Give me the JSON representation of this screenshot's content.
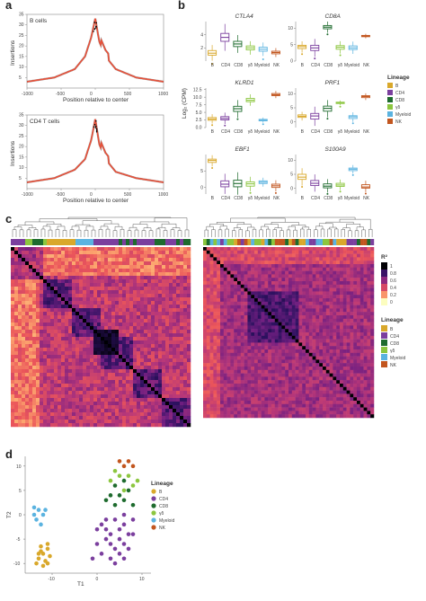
{
  "figure": {
    "panel_a": "a",
    "panel_b": "b",
    "panel_c": "c",
    "panel_d": "d"
  },
  "colors": {
    "B": "#d9a82b",
    "CD4": "#7b3f9e",
    "CD8": "#1e6b2e",
    "gd": "#8cc63f",
    "Myeloid": "#5bb3e0",
    "NK": "#c2561f",
    "profile_line": "#e8513a"
  },
  "panel_a": {
    "plots": [
      {
        "title": "B cells",
        "ylabel": "Insertions",
        "xlabel": "Position relative to center",
        "xticks": [
          "-1000",
          "-500",
          "0",
          "500",
          "1000"
        ],
        "yticks": [
          "5",
          "10",
          "15",
          "20",
          "25",
          "30",
          "35"
        ]
      },
      {
        "title": "CD4 T cells",
        "ylabel": "Insertions",
        "xlabel": "Position relative to center",
        "xticks": [
          "-1000",
          "-500",
          "0",
          "500",
          "1000"
        ],
        "yticks": [
          "5",
          "10",
          "15",
          "20",
          "25",
          "30",
          "35"
        ]
      }
    ]
  },
  "panel_b": {
    "ylabel": "Log₂ (CPM)",
    "categories": [
      "B",
      "CD4",
      "CD8",
      "γδ",
      "Myeloid",
      "NK"
    ],
    "genes": [
      {
        "name": "CTLA4",
        "yticks": [
          "2",
          "4"
        ],
        "ylim": [
          0,
          6
        ],
        "medians": [
          1.2,
          3.6,
          2.6,
          2.0,
          1.8,
          1.3
        ],
        "q1": [
          0.9,
          3.0,
          2.2,
          1.7,
          1.5,
          1.1
        ],
        "q3": [
          1.6,
          4.2,
          3.0,
          2.3,
          2.1,
          1.5
        ]
      },
      {
        "name": "CD8A",
        "yticks": [
          "0",
          "5",
          "10"
        ],
        "ylim": [
          0,
          12
        ],
        "medians": [
          4.4,
          4.0,
          10.3,
          4.2,
          4.0,
          7.6
        ],
        "q1": [
          3.8,
          3.2,
          9.8,
          3.6,
          3.5,
          7.4
        ],
        "q3": [
          4.8,
          4.8,
          10.8,
          4.7,
          4.6,
          7.8
        ]
      },
      {
        "name": "KLRD1",
        "yticks": [
          "0.0",
          "2.5",
          "5.0",
          "7.5",
          "10.0",
          "12.5"
        ],
        "ylim": [
          0,
          13
        ],
        "medians": [
          2.8,
          3.0,
          6.2,
          9.0,
          2.4,
          10.8
        ],
        "q1": [
          2.4,
          2.5,
          5.3,
          8.5,
          2.2,
          10.5
        ],
        "q3": [
          3.3,
          3.6,
          7.0,
          9.6,
          2.7,
          11.2
        ]
      },
      {
        "name": "PRF1",
        "yticks": [
          "0",
          "5",
          "10"
        ],
        "ylim": [
          -2,
          12
        ],
        "medians": [
          2.0,
          2.1,
          4.8,
          6.8,
          1.8,
          9.0
        ],
        "q1": [
          1.6,
          1.0,
          3.8,
          6.5,
          1.2,
          8.6
        ],
        "q3": [
          2.5,
          3.0,
          5.6,
          7.0,
          2.2,
          9.3
        ],
        "yticks2": [
          "0",
          "5",
          "10"
        ]
      },
      {
        "name": "EBF1",
        "yticks": [
          "0",
          "5"
        ],
        "ylim": [
          -2,
          10
        ],
        "medians": [
          8.2,
          1.0,
          1.2,
          1.1,
          1.6,
          0.5
        ],
        "q1": [
          7.6,
          0.2,
          0.2,
          0.4,
          1.2,
          0.0
        ],
        "q3": [
          8.6,
          2.0,
          2.2,
          1.7,
          2.0,
          1.0
        ]
      },
      {
        "name": "S100A9",
        "yticks": [
          "0",
          "5",
          "10"
        ],
        "ylim": [
          -2,
          12
        ],
        "medians": [
          4.0,
          1.8,
          0.8,
          1.2,
          6.8,
          0.5
        ],
        "q1": [
          3.2,
          1.0,
          0.2,
          0.7,
          6.3,
          0.1
        ],
        "q3": [
          5.0,
          2.8,
          1.6,
          1.8,
          7.2,
          1.3
        ]
      }
    ],
    "legend_title": "Lineage",
    "legend": [
      "B",
      "CD4",
      "CD8",
      "γδ",
      "Myeloid",
      "NK"
    ]
  },
  "panel_c": {
    "colorbar_title": "R²",
    "colorbar_labels": [
      "1",
      "0.8",
      "0.6",
      "0.4",
      "0.2",
      "0"
    ],
    "legend_title": "Lineage",
    "legend": [
      "B",
      "CD4",
      "CD8",
      "γδ",
      "Myeloid",
      "NK"
    ]
  },
  "panel_d": {
    "xlabel": "T1",
    "ylabel": "T2",
    "xticks": [
      "-10",
      "0",
      "10"
    ],
    "yticks": [
      "10",
      "5",
      "0",
      "-5",
      "-10"
    ],
    "legend_title": "Lineage",
    "legend": [
      "B",
      "CD4",
      "CD8",
      "γδ",
      "Myeloid",
      "NK"
    ]
  },
  "chart_data": [
    {
      "type": "line",
      "title": "B cells",
      "xlabel": "Position relative to center",
      "ylabel": "Insertions",
      "x": [
        -1000,
        -600,
        -300,
        -150,
        -60,
        0,
        60,
        150,
        300,
        600,
        1000
      ],
      "values": [
        3,
        5,
        9,
        15,
        24,
        33,
        22,
        15,
        9,
        5,
        3
      ],
      "ylim": [
        0,
        35
      ]
    },
    {
      "type": "line",
      "title": "CD4 T cells",
      "xlabel": "Position relative to center",
      "ylabel": "Insertions",
      "x": [
        -1000,
        -600,
        -300,
        -150,
        -60,
        0,
        60,
        150,
        300,
        600,
        1000
      ],
      "values": [
        3,
        5,
        9,
        14,
        23,
        33,
        21,
        14,
        8,
        5,
        3
      ],
      "ylim": [
        0,
        35
      ]
    },
    {
      "type": "scatter",
      "xlabel": "T1",
      "ylabel": "T2",
      "xlim": [
        -16,
        12
      ],
      "ylim": [
        -12,
        12
      ],
      "series": [
        {
          "name": "B",
          "points": [
            [
              -11,
              -7
            ],
            [
              -12,
              -8
            ],
            [
              -13,
              -9
            ],
            [
              -11.5,
              -9.5
            ],
            [
              -12.5,
              -7.5
            ],
            [
              -10.5,
              -8.5
            ],
            [
              -13.5,
              -10
            ],
            [
              -12,
              -10.5
            ],
            [
              -11,
              -10
            ],
            [
              -13,
              -8
            ],
            [
              -12.5,
              -6.5
            ],
            [
              -11,
              -6
            ]
          ]
        },
        {
          "name": "CD4",
          "points": [
            [
              1,
              -2
            ],
            [
              2,
              -3
            ],
            [
              3,
              -4
            ],
            [
              4,
              -1
            ],
            [
              5,
              -3
            ],
            [
              6,
              -2
            ],
            [
              7,
              -4
            ],
            [
              3,
              -6
            ],
            [
              4,
              -7
            ],
            [
              5,
              -5
            ],
            [
              6,
              -6
            ],
            [
              2,
              -5
            ],
            [
              1,
              -8
            ],
            [
              3,
              -9
            ],
            [
              5,
              -8
            ],
            [
              7,
              -7
            ],
            [
              8,
              -4
            ],
            [
              0,
              -6
            ],
            [
              -1,
              -9
            ],
            [
              4,
              -10
            ],
            [
              6,
              -9
            ],
            [
              2,
              -1
            ],
            [
              8,
              -1
            ],
            [
              6,
              0
            ],
            [
              0,
              -3
            ]
          ]
        },
        {
          "name": "CD8",
          "points": [
            [
              2,
              3
            ],
            [
              3,
              4
            ],
            [
              4,
              2
            ],
            [
              5,
              4
            ],
            [
              6,
              3
            ],
            [
              7,
              5
            ],
            [
              4,
              6
            ],
            [
              6,
              7
            ],
            [
              8,
              2
            ]
          ]
        },
        {
          "name": "gd",
          "points": [
            [
              3,
              7
            ],
            [
              5,
              8
            ],
            [
              7,
              8
            ],
            [
              8,
              6
            ],
            [
              6,
              5
            ],
            [
              9,
              7
            ],
            [
              4,
              9
            ]
          ]
        },
        {
          "name": "Myeloid",
          "points": [
            [
              -14,
              0
            ],
            [
              -13,
              1
            ],
            [
              -12,
              0
            ],
            [
              -13.5,
              -1
            ],
            [
              -12.5,
              -2
            ],
            [
              -14,
              1.5
            ],
            [
              -11.5,
              1
            ]
          ]
        },
        {
          "name": "NK",
          "points": [
            [
              5,
              11
            ],
            [
              6,
              10
            ],
            [
              7,
              11
            ],
            [
              8,
              10
            ]
          ]
        }
      ]
    }
  ]
}
